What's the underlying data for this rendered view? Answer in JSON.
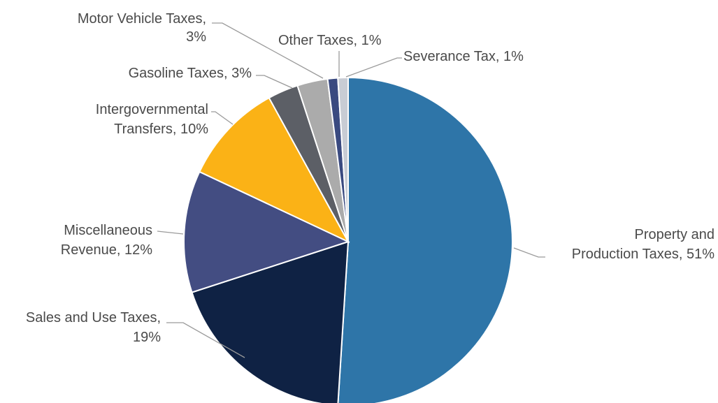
{
  "chart_data": {
    "type": "pie",
    "title": "",
    "legend": "none",
    "slices": [
      {
        "name": "Property and Production Taxes",
        "value": 51,
        "label_lines": [
          "Property and",
          "Production Taxes, 51%"
        ],
        "color": "#2e75a8"
      },
      {
        "name": "Sales and Use Taxes",
        "value": 19,
        "label_lines": [
          "Sales and Use Taxes,",
          "19%"
        ],
        "color": "#0f2244"
      },
      {
        "name": "Miscellaneous Revenue",
        "value": 12,
        "label_lines": [
          "Miscellaneous",
          "Revenue, 12%"
        ],
        "color": "#434d82"
      },
      {
        "name": "Intergovernmental Transfers",
        "value": 10,
        "label_lines": [
          "Intergovernmental",
          "Transfers, 10%"
        ],
        "color": "#fbb216"
      },
      {
        "name": "Gasoline Taxes",
        "value": 3,
        "label_lines": [
          "Gasoline Taxes, 3%"
        ],
        "color": "#5c5f66"
      },
      {
        "name": "Motor Vehicle Taxes",
        "value": 3,
        "label_lines": [
          "Motor Vehicle Taxes,",
          "3%"
        ],
        "color": "#ababab"
      },
      {
        "name": "Other Taxes",
        "value": 1,
        "label_lines": [
          "Other Taxes, 1%"
        ],
        "color": "#3a4a80"
      },
      {
        "name": "Severance Tax",
        "value": 1,
        "label_lines": [
          "Severance Tax, 1%"
        ],
        "color": "#c8ccd4"
      }
    ]
  }
}
